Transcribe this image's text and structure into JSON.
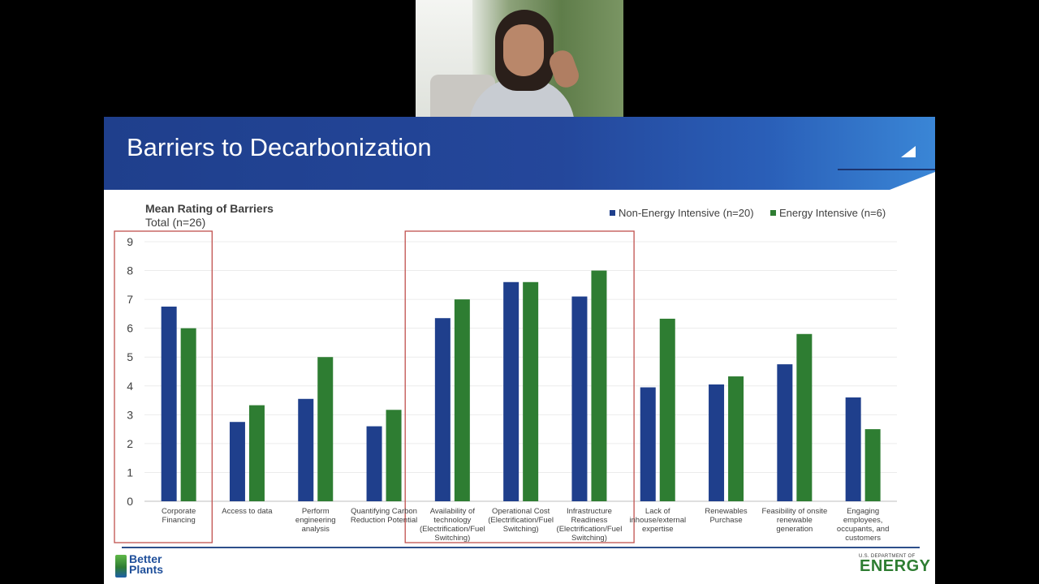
{
  "slide": {
    "title": "Barriers to Decarbonization"
  },
  "legend": [
    {
      "label": "Non-Energy Intensive (n=20)",
      "color": "#1f3f8c"
    },
    {
      "label": "Energy Intensive (n=6)",
      "color": "#2e7d32"
    }
  ],
  "chart_data": {
    "type": "bar",
    "title": "Mean Rating of Barriers",
    "subtitle": "Total (n=26)",
    "categories": [
      [
        "Corporate",
        "Financing"
      ],
      [
        "Access to data"
      ],
      [
        "Perform",
        "engineering",
        "analysis"
      ],
      [
        "Quantifying Carbon",
        "Reduction Potential"
      ],
      [
        "Availability of",
        "technology",
        "(Electrification/Fuel",
        "Switching)"
      ],
      [
        "Operational Cost",
        "(Electrification/Fuel",
        "Switching)"
      ],
      [
        "Infrastructure",
        "Readiness",
        "(Electrification/Fuel",
        "Switching)"
      ],
      [
        "Lack of",
        "inhouse/external",
        "expertise"
      ],
      [
        "Renewables",
        "Purchase"
      ],
      [
        "Feasibility of onsite",
        "renewable",
        "generation"
      ],
      [
        "Engaging",
        "employees,",
        "occupants, and",
        "customers"
      ]
    ],
    "series": [
      {
        "name": "Non-Energy Intensive (n=20)",
        "color": "#1f3f8c",
        "values": [
          6.75,
          2.75,
          3.55,
          2.6,
          6.35,
          7.6,
          7.1,
          3.95,
          4.05,
          4.75,
          3.6
        ]
      },
      {
        "name": "Energy Intensive (n=6)",
        "color": "#2e7d32",
        "values": [
          6.0,
          3.33,
          5.0,
          3.17,
          7.0,
          7.6,
          8.0,
          6.33,
          4.33,
          5.8,
          2.5
        ]
      }
    ],
    "ylim": [
      0,
      9
    ],
    "yticks": [
      0,
      1,
      2,
      3,
      4,
      5,
      6,
      7,
      8,
      9
    ],
    "grid": true,
    "legend_position": "top-right",
    "highlight_boxes": [
      [
        0,
        0
      ],
      [
        4,
        6
      ]
    ]
  },
  "footer": {
    "logo_text": [
      "Better",
      "Plants"
    ],
    "doe_small": "U.S. DEPARTMENT OF",
    "doe_big": "ENERGY"
  }
}
